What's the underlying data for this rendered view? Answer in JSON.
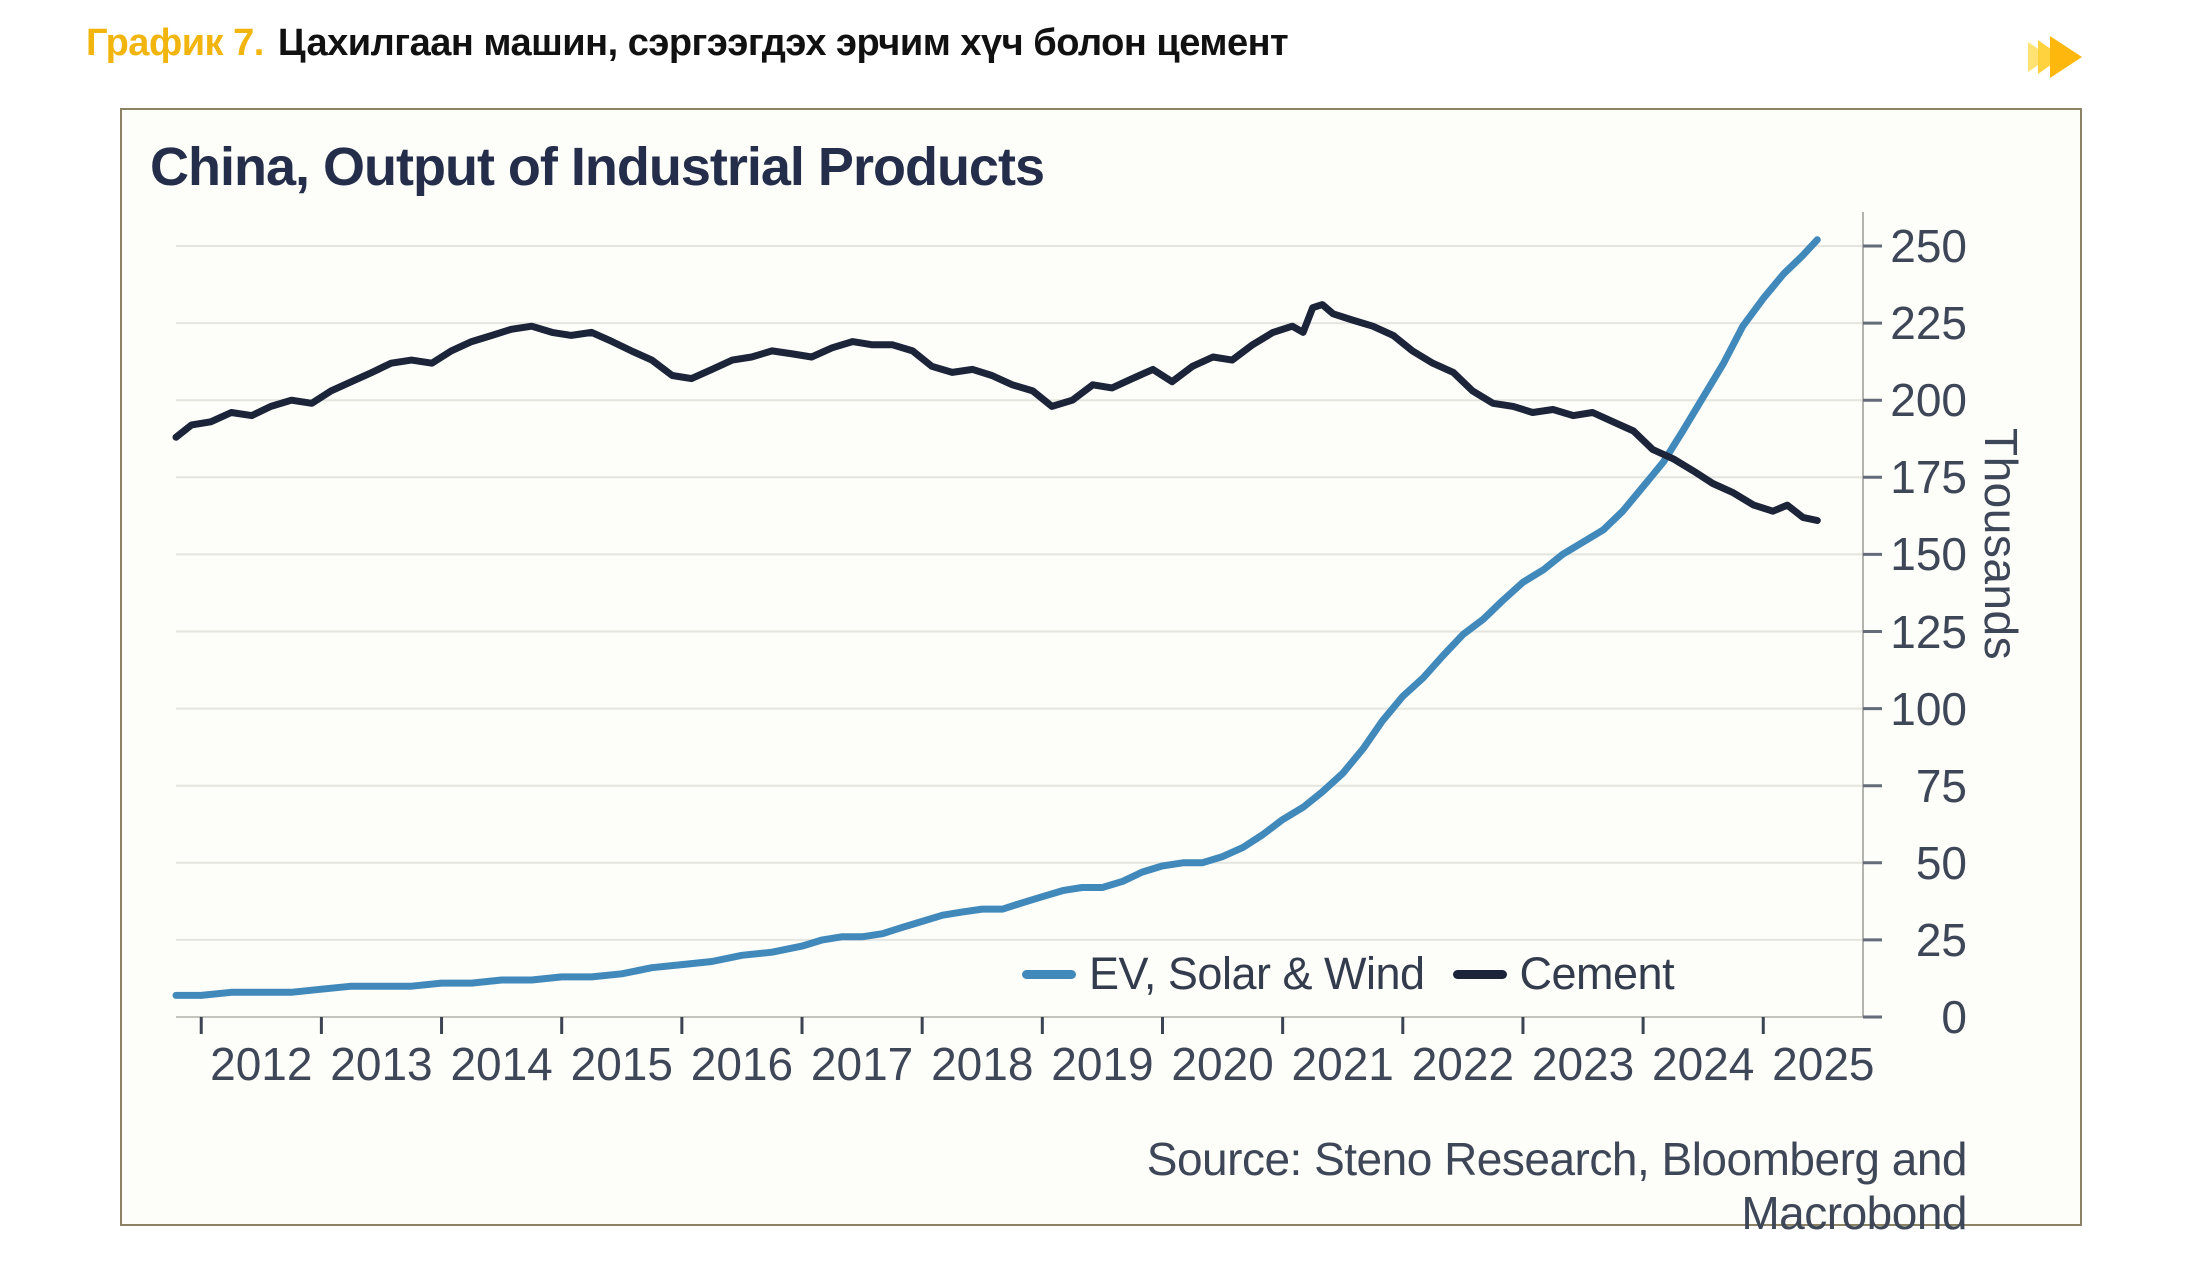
{
  "header": {
    "label": "График 7.",
    "title": "Цахилгаан машин, сэргээгдэх эрчим хүч болон цемент",
    "accent_color": "#f2b50d",
    "ffwd_icon_colors": [
      "#ffe272",
      "#ffd23e",
      "#feb80d"
    ]
  },
  "chart_data": {
    "type": "line",
    "title": "China, Output of Industrial Products",
    "xlabel": "",
    "ylabel": "Thousands",
    "source": "Source: Steno Research, Bloomberg and Macrobond",
    "ylim": [
      0,
      250
    ],
    "xlim": [
      2011.79,
      2025.83
    ],
    "y_ticks": [
      0,
      25,
      50,
      75,
      100,
      125,
      150,
      175,
      200,
      225,
      250
    ],
    "x_ticks": [
      2012,
      2013,
      2014,
      2015,
      2016,
      2017,
      2018,
      2019,
      2020,
      2021,
      2022,
      2023,
      2024,
      2025
    ],
    "x_labels": [
      "2012",
      "2013",
      "2014",
      "2015",
      "2016",
      "2017",
      "2018",
      "2019",
      "2020",
      "2021",
      "2022",
      "2023",
      "2024",
      "2025"
    ],
    "grid": "horizontal",
    "legend_position": "inside-bottom-right",
    "colors": {
      "grid": "#e5e5e0",
      "x_axis": "#c4c4bf",
      "y_axis": "#b4b4af",
      "y_tick": "#646c7a",
      "x_tick": "#3c4454",
      "tick_label": "#3e4757",
      "title": "#242e4a"
    },
    "series": [
      {
        "name": "EV, Solar & Wind",
        "color": "#4189ba",
        "points": [
          [
            2011.79,
            7
          ],
          [
            2012.0,
            7
          ],
          [
            2012.25,
            8
          ],
          [
            2012.5,
            8
          ],
          [
            2012.75,
            8
          ],
          [
            2013.0,
            9
          ],
          [
            2013.25,
            10
          ],
          [
            2013.5,
            10
          ],
          [
            2013.75,
            10
          ],
          [
            2014.0,
            11
          ],
          [
            2014.25,
            11
          ],
          [
            2014.5,
            12
          ],
          [
            2014.75,
            12
          ],
          [
            2015.0,
            13
          ],
          [
            2015.25,
            13
          ],
          [
            2015.5,
            14
          ],
          [
            2015.75,
            16
          ],
          [
            2016.0,
            17
          ],
          [
            2016.25,
            18
          ],
          [
            2016.5,
            20
          ],
          [
            2016.75,
            21
          ],
          [
            2017.0,
            23
          ],
          [
            2017.17,
            25
          ],
          [
            2017.33,
            26
          ],
          [
            2017.5,
            26
          ],
          [
            2017.67,
            27
          ],
          [
            2017.83,
            29
          ],
          [
            2018.0,
            31
          ],
          [
            2018.17,
            33
          ],
          [
            2018.33,
            34
          ],
          [
            2018.5,
            35
          ],
          [
            2018.67,
            35
          ],
          [
            2018.83,
            37
          ],
          [
            2019.0,
            39
          ],
          [
            2019.17,
            41
          ],
          [
            2019.33,
            42
          ],
          [
            2019.5,
            42
          ],
          [
            2019.67,
            44
          ],
          [
            2019.83,
            47
          ],
          [
            2020.0,
            49
          ],
          [
            2020.17,
            50
          ],
          [
            2020.33,
            50
          ],
          [
            2020.5,
            52
          ],
          [
            2020.67,
            55
          ],
          [
            2020.83,
            59
          ],
          [
            2021.0,
            64
          ],
          [
            2021.17,
            68
          ],
          [
            2021.33,
            73
          ],
          [
            2021.5,
            79
          ],
          [
            2021.67,
            87
          ],
          [
            2021.83,
            96
          ],
          [
            2022.0,
            104
          ],
          [
            2022.17,
            110
          ],
          [
            2022.33,
            117
          ],
          [
            2022.5,
            124
          ],
          [
            2022.67,
            129
          ],
          [
            2022.83,
            135
          ],
          [
            2023.0,
            141
          ],
          [
            2023.17,
            145
          ],
          [
            2023.33,
            150
          ],
          [
            2023.5,
            154
          ],
          [
            2023.67,
            158
          ],
          [
            2023.83,
            164
          ],
          [
            2024.0,
            172
          ],
          [
            2024.17,
            180
          ],
          [
            2024.33,
            190
          ],
          [
            2024.5,
            201
          ],
          [
            2024.67,
            212
          ],
          [
            2024.83,
            224
          ],
          [
            2025.0,
            233
          ],
          [
            2025.17,
            241
          ],
          [
            2025.33,
            247
          ],
          [
            2025.45,
            252
          ]
        ]
      },
      {
        "name": "Cement",
        "color": "#1b2439",
        "points": [
          [
            2011.79,
            188
          ],
          [
            2011.92,
            192
          ],
          [
            2012.08,
            193
          ],
          [
            2012.25,
            196
          ],
          [
            2012.42,
            195
          ],
          [
            2012.58,
            198
          ],
          [
            2012.75,
            200
          ],
          [
            2012.92,
            199
          ],
          [
            2013.08,
            203
          ],
          [
            2013.25,
            206
          ],
          [
            2013.42,
            209
          ],
          [
            2013.58,
            212
          ],
          [
            2013.75,
            213
          ],
          [
            2013.92,
            212
          ],
          [
            2014.08,
            216
          ],
          [
            2014.25,
            219
          ],
          [
            2014.42,
            221
          ],
          [
            2014.58,
            223
          ],
          [
            2014.75,
            224
          ],
          [
            2014.92,
            222
          ],
          [
            2015.08,
            221
          ],
          [
            2015.25,
            222
          ],
          [
            2015.42,
            219
          ],
          [
            2015.58,
            216
          ],
          [
            2015.75,
            213
          ],
          [
            2015.92,
            208
          ],
          [
            2016.08,
            207
          ],
          [
            2016.25,
            210
          ],
          [
            2016.42,
            213
          ],
          [
            2016.58,
            214
          ],
          [
            2016.75,
            216
          ],
          [
            2016.92,
            215
          ],
          [
            2017.08,
            214
          ],
          [
            2017.25,
            217
          ],
          [
            2017.42,
            219
          ],
          [
            2017.58,
            218
          ],
          [
            2017.75,
            218
          ],
          [
            2017.92,
            216
          ],
          [
            2018.08,
            211
          ],
          [
            2018.25,
            209
          ],
          [
            2018.42,
            210
          ],
          [
            2018.58,
            208
          ],
          [
            2018.75,
            205
          ],
          [
            2018.92,
            203
          ],
          [
            2019.08,
            198
          ],
          [
            2019.25,
            200
          ],
          [
            2019.42,
            205
          ],
          [
            2019.58,
            204
          ],
          [
            2019.75,
            207
          ],
          [
            2019.92,
            210
          ],
          [
            2020.08,
            206
          ],
          [
            2020.25,
            211
          ],
          [
            2020.42,
            214
          ],
          [
            2020.58,
            213
          ],
          [
            2020.75,
            218
          ],
          [
            2020.92,
            222
          ],
          [
            2021.08,
            224
          ],
          [
            2021.17,
            222
          ],
          [
            2021.25,
            230
          ],
          [
            2021.33,
            231
          ],
          [
            2021.42,
            228
          ],
          [
            2021.58,
            226
          ],
          [
            2021.75,
            224
          ],
          [
            2021.92,
            221
          ],
          [
            2022.08,
            216
          ],
          [
            2022.25,
            212
          ],
          [
            2022.42,
            209
          ],
          [
            2022.58,
            203
          ],
          [
            2022.75,
            199
          ],
          [
            2022.92,
            198
          ],
          [
            2023.08,
            196
          ],
          [
            2023.25,
            197
          ],
          [
            2023.42,
            195
          ],
          [
            2023.58,
            196
          ],
          [
            2023.75,
            193
          ],
          [
            2023.92,
            190
          ],
          [
            2024.08,
            184
          ],
          [
            2024.25,
            181
          ],
          [
            2024.42,
            177
          ],
          [
            2024.58,
            173
          ],
          [
            2024.75,
            170
          ],
          [
            2024.92,
            166
          ],
          [
            2025.08,
            164
          ],
          [
            2025.2,
            166
          ],
          [
            2025.33,
            162
          ],
          [
            2025.45,
            161
          ]
        ]
      }
    ]
  }
}
